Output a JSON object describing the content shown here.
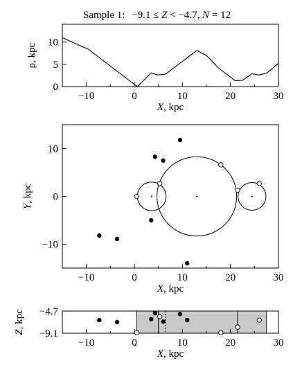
{
  "title": {
    "prefix": "Sample 1:",
    "range": "−9.1 ≤ ",
    "zvar": "Z",
    "mid": " < −4.7, ",
    "nvar": "N",
    "count": " = 12"
  },
  "chart_data": [
    {
      "type": "line",
      "panel": "top",
      "xlabel": {
        "var": "X",
        "unit": ", kpc"
      },
      "ylabel": "ρ, kpc",
      "xlim": [
        -15,
        30
      ],
      "ylim": [
        0,
        14
      ],
      "xticks": [
        "−10",
        "0",
        "10",
        "20",
        "30"
      ],
      "xtick_values": [
        -10,
        0,
        10,
        20,
        30
      ],
      "yticks": [
        "0",
        "5",
        "10"
      ],
      "ytick_values": [
        0,
        5,
        10
      ],
      "x": [
        -15,
        -12,
        -9.6,
        0.6,
        3.5,
        4.8,
        6.5,
        13,
        15,
        17.5,
        21,
        22.5,
        24.5,
        26,
        27.5,
        30
      ],
      "y": [
        11.0,
        9.5,
        8.4,
        0.0,
        3.1,
        2.6,
        2.8,
        8.1,
        7.0,
        4.2,
        1.3,
        1.4,
        2.9,
        2.6,
        3.0,
        5.2
      ]
    },
    {
      "type": "scatter",
      "panel": "middle",
      "xlabel": {
        "var": "X",
        "unit": ", kpc"
      },
      "ylabel": {
        "var": "Y",
        "unit": ", kpc"
      },
      "xlim": [
        -15,
        30
      ],
      "ylim": [
        -15,
        15
      ],
      "xticks": [
        "−10",
        "0",
        "10",
        "20",
        "30"
      ],
      "xtick_values": [
        -10,
        0,
        10,
        20,
        30
      ],
      "yticks": [
        "−10",
        "0",
        "10"
      ],
      "ytick_values": [
        -10,
        0,
        10
      ],
      "filled_points": [
        {
          "x": 9.5,
          "y": 11.8
        },
        {
          "x": 4.3,
          "y": 8.3
        },
        {
          "x": 6.0,
          "y": 7.5
        },
        {
          "x": 3.5,
          "y": -5.0
        },
        {
          "x": -7.3,
          "y": -8.2
        },
        {
          "x": -3.6,
          "y": -8.9
        },
        {
          "x": 11.0,
          "y": -14.0
        }
      ],
      "open_points": [
        {
          "x": 0.5,
          "y": 0.0
        },
        {
          "x": 5.3,
          "y": 2.7
        },
        {
          "x": 18.0,
          "y": 6.6
        },
        {
          "x": 21.5,
          "y": 1.3
        },
        {
          "x": 26.0,
          "y": 2.7
        }
      ],
      "circles": [
        {
          "cx": 3.6,
          "cy": 0.0,
          "r": 3.0
        },
        {
          "cx": 13.0,
          "cy": 0.0,
          "r": 8.3
        },
        {
          "cx": 24.5,
          "cy": 0.0,
          "r": 2.9
        }
      ]
    },
    {
      "type": "scatter",
      "panel": "bottom",
      "xlabel": {
        "var": "X",
        "unit": ", kpc"
      },
      "ylabel": {
        "var": "Z",
        "unit": ", kpc"
      },
      "xlim": [
        -15,
        30
      ],
      "ylim": [
        -9.1,
        -4.7
      ],
      "xticks": [
        "−10",
        "0",
        "10",
        "20",
        "30"
      ],
      "xtick_values": [
        -10,
        0,
        10,
        20,
        30
      ],
      "yticks": [
        "−4.7",
        "−9.1"
      ],
      "ytick_values": [
        -4.7,
        -9.1
      ],
      "shaded_range": [
        0.5,
        27.5
      ],
      "lines_solid": [
        5.0,
        21.5
      ],
      "lines_dashed": [
        6.5
      ],
      "filled_points": [
        {
          "x": -7.3,
          "y": -6.5
        },
        {
          "x": -3.6,
          "y": -6.9
        },
        {
          "x": 3.5,
          "y": -6.3
        },
        {
          "x": 4.3,
          "y": -5.1
        },
        {
          "x": 6.0,
          "y": -6.8
        },
        {
          "x": 9.5,
          "y": -5.3
        },
        {
          "x": 11.0,
          "y": -6.5
        }
      ],
      "open_points": [
        {
          "x": 0.5,
          "y": -9.0
        },
        {
          "x": 5.3,
          "y": -5.8
        },
        {
          "x": 18.0,
          "y": -9.0
        },
        {
          "x": 21.5,
          "y": -7.9
        },
        {
          "x": 26.0,
          "y": -6.5
        }
      ]
    }
  ]
}
